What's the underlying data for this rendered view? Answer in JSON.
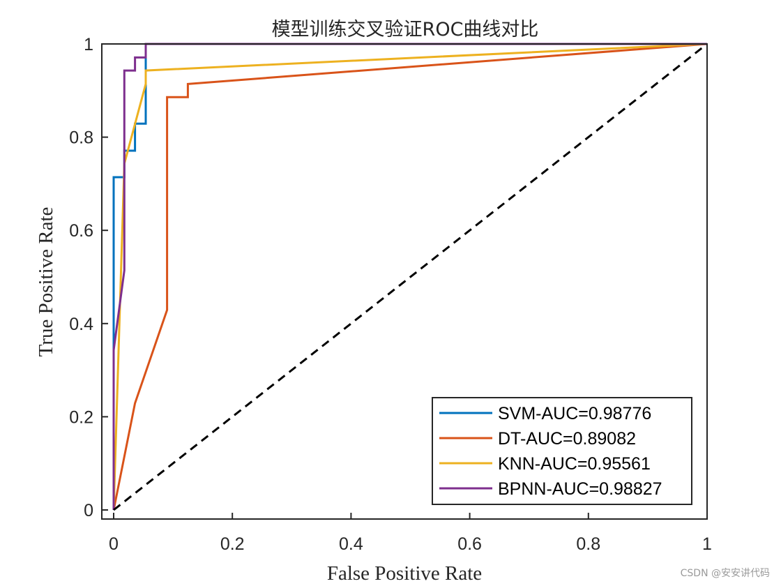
{
  "chart_data": {
    "type": "line",
    "title": "模型训练交叉验证ROC曲线对比",
    "xlabel": "False Positive Rate",
    "ylabel": "True Positive Rate",
    "xlim": [
      0,
      1
    ],
    "ylim": [
      0,
      1
    ],
    "xticks": [
      0,
      0.2,
      0.4,
      0.6,
      0.8,
      1
    ],
    "yticks": [
      0,
      0.2,
      0.4,
      0.6,
      0.8,
      1
    ],
    "xtick_labels": [
      "0",
      "0.2",
      "0.4",
      "0.6",
      "0.8",
      "1"
    ],
    "ytick_labels": [
      "0",
      "0.2",
      "0.4",
      "0.6",
      "0.8",
      "1"
    ],
    "grid": false,
    "legend_location": "bottom-right",
    "reference_line": {
      "name": "diagonal",
      "x": [
        0,
        1
      ],
      "y": [
        0,
        1
      ],
      "style": "dashed",
      "color": "#000000"
    },
    "series": [
      {
        "name": "SVM-AUC=0.98776",
        "color": "#0072BD",
        "x": [
          0,
          0,
          0,
          0.018,
          0.018,
          0.036,
          0.036,
          0.054,
          0.054,
          1
        ],
        "y": [
          0,
          0.33,
          0.714,
          0.714,
          0.771,
          0.771,
          0.829,
          0.829,
          1,
          1
        ]
      },
      {
        "name": "DT-AUC=0.89082",
        "color": "#D95319",
        "x": [
          0,
          0.036,
          0.09,
          0.09,
          0.125,
          0.125,
          1
        ],
        "y": [
          0,
          0.229,
          0.429,
          0.886,
          0.886,
          0.914,
          1
        ]
      },
      {
        "name": "KNN-AUC=0.95561",
        "color": "#EDB120",
        "x": [
          0,
          0.018,
          0.054,
          0.054,
          1
        ],
        "y": [
          0,
          0.743,
          0.914,
          0.943,
          1
        ]
      },
      {
        "name": "BPNN-AUC=0.98827",
        "color": "#7E2F8E",
        "x": [
          0,
          0,
          0.018,
          0.018,
          0.036,
          0.036,
          0.054,
          0.054,
          1
        ],
        "y": [
          0,
          0.343,
          0.514,
          0.943,
          0.943,
          0.971,
          0.971,
          1,
          1
        ]
      }
    ]
  },
  "watermark": "CSDN @安安讲代码"
}
